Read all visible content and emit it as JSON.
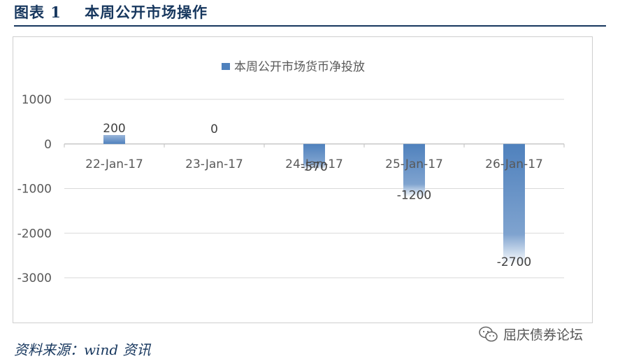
{
  "figure_title": "图表 1    本周公开市场操作",
  "source_text": "资料来源：wind 资讯",
  "watermark_text": "屈庆债券论坛",
  "colors": {
    "bar": "#4f81bd",
    "title": "#17375e",
    "grid": "#d9d9d9"
  },
  "chart_data": {
    "type": "bar",
    "categories": [
      "22-Jan-17",
      "23-Jan-17",
      "24-Jan-17",
      "25-Jan-17",
      "26-Jan-17"
    ],
    "series": [
      {
        "name": "本周公开市场货币净投放",
        "values": [
          200,
          0,
          -570,
          -1200,
          -2700
        ]
      }
    ],
    "data_labels": [
      "200",
      "0",
      "-570",
      "-1200",
      "-2700"
    ],
    "yticks": [
      1000,
      0,
      -1000,
      -2000,
      -3000
    ],
    "ytick_labels": [
      "1000",
      "0",
      "-1000",
      "-2000",
      "-3000"
    ],
    "ylim": [
      -3000,
      1000
    ],
    "legend_position": "top",
    "grid": true
  }
}
